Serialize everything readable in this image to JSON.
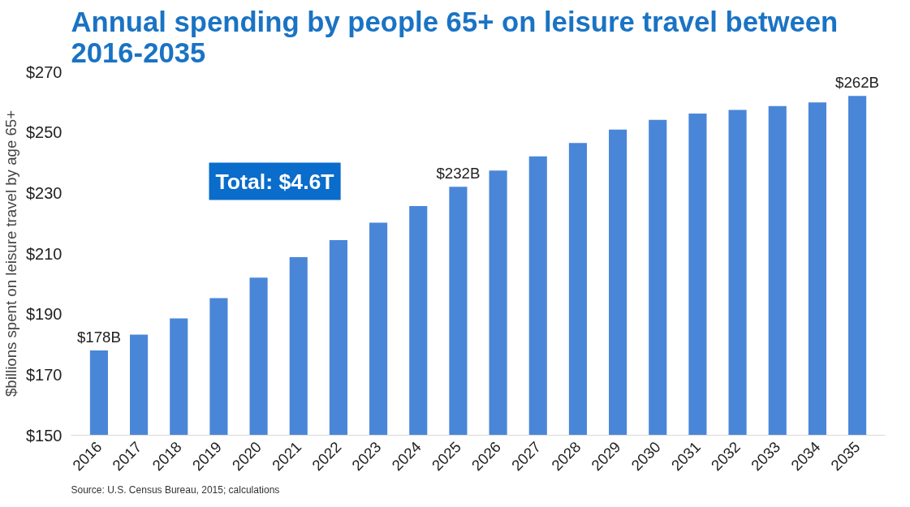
{
  "chart_data": {
    "type": "bar",
    "title": "Annual spending by people 65+ on leisure travel between 2016-2035",
    "ylabel": "$billions spent on leisure travel by age 65+",
    "categories": [
      "2016",
      "2017",
      "2018",
      "2019",
      "2020",
      "2021",
      "2022",
      "2023",
      "2024",
      "2025",
      "2026",
      "2027",
      "2028",
      "2029",
      "2030",
      "2031",
      "2032",
      "2033",
      "2034",
      "2035"
    ],
    "values": [
      178,
      183.2,
      188.6,
      195.3,
      202,
      208.8,
      214.4,
      220.2,
      225.7,
      232,
      237.4,
      242.1,
      246.5,
      250.9,
      254.1,
      256.2,
      257.4,
      258.7,
      259.9,
      262
    ],
    "value_labels": [
      "$178B",
      null,
      null,
      null,
      null,
      null,
      null,
      null,
      null,
      "$232B",
      null,
      null,
      null,
      null,
      null,
      null,
      null,
      null,
      null,
      "$262B"
    ],
    "color": "#4a86d8",
    "ylim": [
      150,
      270
    ],
    "yticks": [
      {
        "value": 150,
        "label": "$150"
      },
      {
        "value": 170,
        "label": "$170"
      },
      {
        "value": 190,
        "label": "$190"
      },
      {
        "value": 210,
        "label": "$210"
      },
      {
        "value": 230,
        "label": "$230"
      },
      {
        "value": 250,
        "label": "$250"
      },
      {
        "value": 270,
        "label": "$270"
      }
    ],
    "annotations": [
      "Total: $4.6T",
      "Source: U.S. Census Bureau, 2015; calculations"
    ]
  }
}
